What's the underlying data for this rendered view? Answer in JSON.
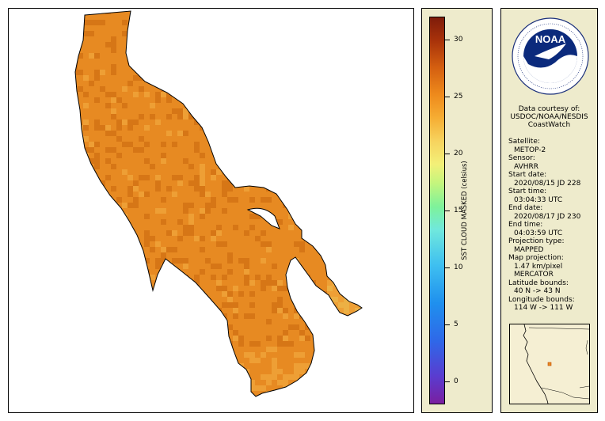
{
  "colors": {
    "panel_bg": "#eeebcc",
    "sst_fill": "#e78a22",
    "sst_dark": "#c8660c",
    "sst_warm_light": "#f4b045",
    "sst_shallow": "#f0d060"
  },
  "map": {
    "feature": "great-salt-lake",
    "marker_icon": "location-square-icon"
  },
  "colorbar": {
    "title": "SST CLOUD MASKED (celsius)",
    "min": -2,
    "max": 32,
    "ticks": [
      {
        "value": 0,
        "label": "0"
      },
      {
        "value": 5,
        "label": "5"
      },
      {
        "value": 10,
        "label": "10"
      },
      {
        "value": 15,
        "label": "15"
      },
      {
        "value": 20,
        "label": "20"
      },
      {
        "value": 25,
        "label": "25"
      },
      {
        "value": 30,
        "label": "30"
      }
    ]
  },
  "info": {
    "logo_text": "NOAA",
    "logo_ring_text": "NATIONAL OCEANIC AND ATMOSPHERIC ADMINISTRATION · U.S. DEPARTMENT OF COMMERCE",
    "credit_line1": "Data courtesy of:",
    "credit_line2": "USDOC/NOAA/NESDIS",
    "credit_line3": "CoastWatch",
    "satellite_label": "Satellite:",
    "satellite_value": "METOP-2",
    "sensor_label": "Sensor:",
    "sensor_value": "AVHRR",
    "start_date_label": "Start date:",
    "start_date_value": "2020/08/15 JD 228",
    "start_time_label": "Start time:",
    "start_time_value": "03:04:33 UTC",
    "end_date_label": "End date:",
    "end_date_value": "2020/08/17 JD 230",
    "end_time_label": "End time:",
    "end_time_value": "04:03:59 UTC",
    "projection_type_label": "Projection type:",
    "projection_type_value": "MAPPED",
    "map_projection_label": "Map projection:",
    "map_projection_value1": "1.47 km/pixel",
    "map_projection_value2": "MERCATOR",
    "lat_bounds_label": "Latitude bounds:",
    "lat_bounds_value": "40 N -> 43 N",
    "lon_bounds_label": "Longitude bounds:",
    "lon_bounds_value": "114 W -> 111 W"
  }
}
